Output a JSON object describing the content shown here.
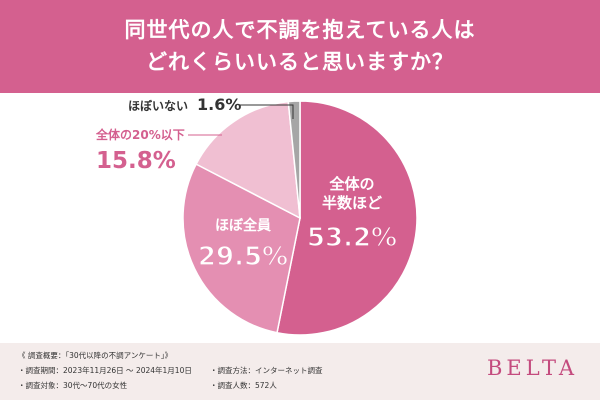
{
  "header": {
    "line1": "同世代の人で不調を抱えている人は",
    "line2": "どれくらいいると思いますか？"
  },
  "chart_data": {
    "type": "pie",
    "title": "同世代の人で不調を抱えている人は どれくらいいると思いますか？",
    "slices": [
      {
        "name": "全体の半数ほど",
        "value": 53.2,
        "label_lines": [
          "全体の",
          "半数ほど"
        ],
        "value_label": "53.2%",
        "color": "#d4608f"
      },
      {
        "name": "ほぼ全員",
        "value": 29.5,
        "label_lines": [
          "ほぼ全員"
        ],
        "value_label": "29.5%",
        "color": "#e48fb2"
      },
      {
        "name": "全体の20%以下",
        "value": 15.8,
        "label_lines": [
          "全体の20%以下"
        ],
        "value_label": "15.8%",
        "color": "#f0bfd2"
      },
      {
        "name": "ほぼいない",
        "value": 1.6,
        "label_lines": [
          "ほぼいない"
        ],
        "value_label": "1.6%",
        "color": "#a6a6a6"
      }
    ]
  },
  "footer": {
    "survey_title": "《 調査概要：「30代以降の不調アンケート」》",
    "period": "・調査期間：2023年11月26日 ～ 2024年1月10日",
    "target": "・調査対象：30代～70代の女性",
    "method": "・調査方法：インターネット調査",
    "count": "・調査人数：572人",
    "brand": "BELTA"
  }
}
